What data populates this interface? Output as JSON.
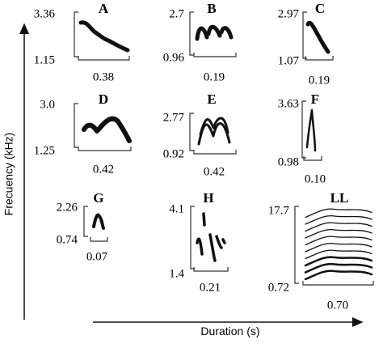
{
  "figure": {
    "y_axis_label": "Frecuency (kHz)",
    "x_axis_label": "Duration (s)",
    "panels": [
      {
        "label": "A",
        "freq_max": "3.36",
        "freq_min": "1.15",
        "duration": "0.38"
      },
      {
        "label": "B",
        "freq_max": "2.7",
        "freq_min": "0.96",
        "duration": "0.19"
      },
      {
        "label": "C",
        "freq_max": "2.97",
        "freq_min": "1.07",
        "duration": "0.19"
      },
      {
        "label": "D",
        "freq_max": "3.0",
        "freq_min": "1.25",
        "duration": "0.42"
      },
      {
        "label": "E",
        "freq_max": "2.77",
        "freq_min": "0.92",
        "duration": "0.42"
      },
      {
        "label": "F",
        "freq_max": "3.63",
        "freq_min": "0.98",
        "duration": "0.10"
      },
      {
        "label": "G",
        "freq_max": "2.26",
        "freq_min": "0.74",
        "duration": "0.07"
      },
      {
        "label": "H",
        "freq_max": "4.1",
        "freq_min": "1.4",
        "duration": "0.21"
      },
      {
        "label": "LL",
        "freq_max": "17.7",
        "freq_min": "0.72",
        "duration": "0.70"
      }
    ]
  }
}
